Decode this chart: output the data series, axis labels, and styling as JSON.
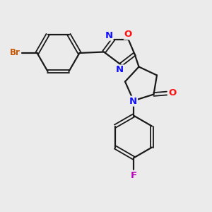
{
  "background_color": "#ebebeb",
  "bond_color": "#1a1a1a",
  "N_color": "#1010ff",
  "O_color": "#ff1010",
  "Br_color": "#cc5500",
  "F_color": "#bb00bb",
  "figsize": [
    3.0,
    3.0
  ],
  "dpi": 100,
  "xlim": [
    0,
    10
  ],
  "ylim": [
    0,
    10
  ]
}
